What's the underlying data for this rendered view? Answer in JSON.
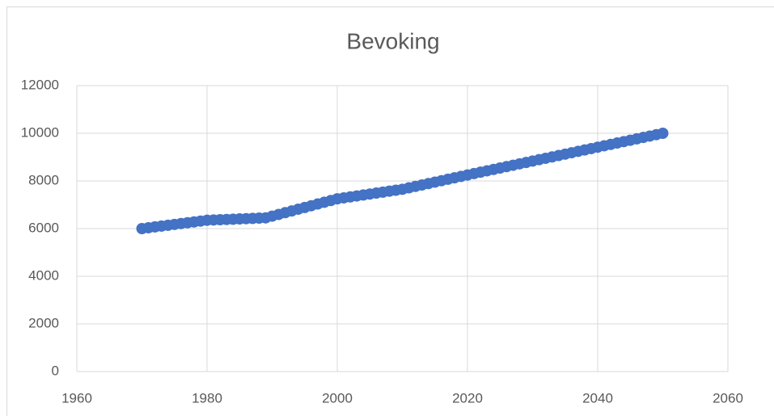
{
  "chart_data": {
    "type": "scatter",
    "title": "Bevoking",
    "x": [
      1970,
      1971,
      1972,
      1973,
      1974,
      1975,
      1976,
      1977,
      1978,
      1979,
      1980,
      1981,
      1982,
      1983,
      1984,
      1985,
      1986,
      1987,
      1988,
      1989,
      1990,
      1991,
      1992,
      1993,
      1994,
      1995,
      1996,
      1997,
      1998,
      1999,
      2000,
      2001,
      2002,
      2003,
      2004,
      2005,
      2006,
      2007,
      2008,
      2009,
      2010,
      2011,
      2012,
      2013,
      2014,
      2015,
      2016,
      2017,
      2018,
      2019,
      2020,
      2021,
      2022,
      2023,
      2024,
      2025,
      2026,
      2027,
      2028,
      2029,
      2030,
      2031,
      2032,
      2033,
      2034,
      2035,
      2036,
      2037,
      2038,
      2039,
      2040,
      2041,
      2042,
      2043,
      2044,
      2045,
      2046,
      2047,
      2048,
      2049,
      2050
    ],
    "values": [
      6000,
      6035,
      6070,
      6105,
      6140,
      6175,
      6210,
      6245,
      6280,
      6315,
      6350,
      6361,
      6372,
      6383,
      6394,
      6406,
      6417,
      6428,
      6439,
      6450,
      6523,
      6595,
      6668,
      6741,
      6814,
      6886,
      6959,
      7032,
      7105,
      7177,
      7250,
      7290,
      7330,
      7370,
      7410,
      7450,
      7490,
      7530,
      7570,
      7610,
      7650,
      7710,
      7770,
      7830,
      7890,
      7950,
      8010,
      8070,
      8130,
      8190,
      8250,
      8308,
      8367,
      8425,
      8483,
      8542,
      8600,
      8658,
      8717,
      8775,
      8833,
      8892,
      8950,
      9008,
      9067,
      9125,
      9183,
      9242,
      9300,
      9358,
      9417,
      9475,
      9533,
      9592,
      9650,
      9708,
      9767,
      9825,
      9883,
      9942,
      10000
    ],
    "color": "#4472c4",
    "xlim": [
      1960,
      2060
    ],
    "xticks": [
      1960,
      1980,
      2000,
      2020,
      2040,
      2060
    ],
    "ylim": [
      0,
      12000
    ],
    "yticks": [
      0,
      2000,
      4000,
      6000,
      8000,
      10000,
      12000
    ],
    "grid": true
  }
}
